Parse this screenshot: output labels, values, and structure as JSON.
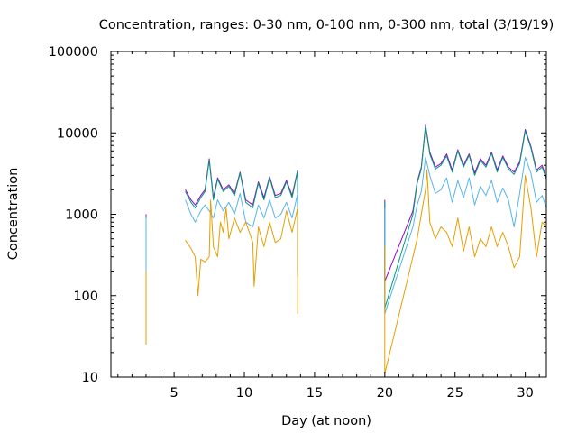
{
  "chart_data": {
    "type": "line",
    "title": "Concentration, ranges: 0-30 nm, 0-100 nm, 0-300 nm, total (3/19/19)",
    "xlabel": "Day (at noon)",
    "ylabel": "Concentration",
    "xlim": [
      0.5,
      31.5
    ],
    "ylim": [
      10,
      100000
    ],
    "yscale": "log",
    "grid": false,
    "legend": "none",
    "x_ticks": [
      5,
      10,
      15,
      20,
      25,
      30
    ],
    "x_tick_labels": [
      "5",
      "10",
      "15",
      "20",
      "25",
      "30"
    ],
    "y_ticks": [
      10,
      100,
      1000,
      10000,
      100000
    ],
    "y_tick_labels": [
      "10",
      "100",
      "1000",
      "10000",
      "100000"
    ],
    "series": [
      {
        "color": "#9400d3",
        "x": [
          3.0,
          3.0,
          5.8,
          6.2,
          6.5,
          6.9,
          7.2,
          7.5,
          7.8,
          8.1,
          8.5,
          8.9,
          9.3,
          9.7,
          10.1,
          10.6,
          11.0,
          11.4,
          11.8,
          12.2,
          12.6,
          13.0,
          13.4,
          13.8,
          13.8,
          20.0,
          20.0,
          22.0,
          22.3,
          22.6,
          22.9,
          23.2,
          23.6,
          24.0,
          24.4,
          24.8,
          25.2,
          25.6,
          26.0,
          26.4,
          26.8,
          27.2,
          27.6,
          28.0,
          28.4,
          28.8,
          29.2,
          29.6,
          30.0,
          30.4,
          30.8,
          31.2,
          31.5
        ],
        "y": [
          1000,
          200,
          2000,
          1500,
          1300,
          1700,
          2000,
          4800,
          1600,
          2800,
          2000,
          2300,
          1800,
          3300,
          1500,
          1300,
          2500,
          1600,
          2900,
          1700,
          1800,
          2600,
          1700,
          3500,
          200,
          1500,
          150,
          1100,
          2500,
          3800,
          12500,
          5800,
          3800,
          4200,
          5500,
          3500,
          6200,
          4000,
          5500,
          3200,
          4800,
          4000,
          5800,
          3500,
          5200,
          3800,
          3300,
          4400,
          11000,
          6800,
          3500,
          4000,
          2800
        ]
      },
      {
        "color": "#009e73",
        "x": [
          3.0,
          3.0,
          5.8,
          6.2,
          6.5,
          6.9,
          7.2,
          7.5,
          7.8,
          8.1,
          8.5,
          8.9,
          9.3,
          9.7,
          10.1,
          10.6,
          11.0,
          11.4,
          11.8,
          12.2,
          12.6,
          13.0,
          13.4,
          13.8,
          13.8,
          20.0,
          20.0,
          22.0,
          22.3,
          22.6,
          22.9,
          23.2,
          23.6,
          24.0,
          24.4,
          24.8,
          25.2,
          25.6,
          26.0,
          26.4,
          26.8,
          27.2,
          27.6,
          28.0,
          28.4,
          28.8,
          29.2,
          29.6,
          30.0,
          30.4,
          30.8,
          31.2,
          31.5
        ],
        "y": [
          950,
          180,
          1900,
          1400,
          1200,
          1600,
          1900,
          4600,
          1500,
          2700,
          1900,
          2200,
          1700,
          3200,
          1400,
          1200,
          2400,
          1500,
          2800,
          1600,
          1700,
          2500,
          1600,
          3400,
          180,
          1400,
          70,
          1000,
          2400,
          3600,
          12000,
          5500,
          3600,
          4000,
          5200,
          3300,
          6000,
          3800,
          5300,
          3000,
          4600,
          3800,
          5600,
          3300,
          5000,
          3600,
          3100,
          4200,
          10500,
          6500,
          3300,
          3800,
          2700
        ]
      },
      {
        "color": "#56b4e9",
        "x": [
          3.0,
          3.0,
          5.8,
          6.2,
          6.5,
          6.9,
          7.2,
          7.5,
          7.8,
          8.1,
          8.5,
          8.9,
          9.3,
          9.7,
          10.1,
          10.6,
          11.0,
          11.4,
          11.8,
          12.2,
          12.6,
          13.0,
          13.4,
          13.8,
          13.8,
          20.0,
          20.0,
          22.0,
          22.3,
          22.6,
          22.9,
          23.2,
          23.6,
          24.0,
          24.4,
          24.8,
          25.2,
          25.6,
          26.0,
          26.4,
          26.8,
          27.2,
          27.6,
          28.0,
          28.4,
          28.8,
          29.2,
          29.6,
          30.0,
          30.4,
          30.8,
          31.2,
          31.5
        ],
        "y": [
          900,
          170,
          1500,
          1000,
          800,
          1100,
          1300,
          1100,
          900,
          1500,
          1100,
          1400,
          1000,
          1800,
          800,
          700,
          1300,
          900,
          1500,
          900,
          1000,
          1400,
          900,
          1800,
          170,
          1200,
          60,
          700,
          1300,
          1900,
          5000,
          3000,
          1800,
          2000,
          2800,
          1400,
          2600,
          1600,
          2800,
          1300,
          2200,
          1700,
          2600,
          1400,
          2100,
          1500,
          700,
          1800,
          5000,
          3200,
          1400,
          1700,
          1200
        ]
      },
      {
        "color": "#e69f00",
        "x": [
          3.0,
          3.0,
          5.8,
          6.2,
          6.5,
          6.7,
          6.9,
          7.2,
          7.5,
          7.6,
          7.8,
          8.1,
          8.3,
          8.5,
          8.7,
          8.9,
          9.3,
          9.7,
          10.1,
          10.6,
          10.7,
          11.0,
          11.4,
          11.8,
          12.2,
          12.6,
          13.0,
          13.4,
          13.8,
          13.8,
          20.0,
          20.0,
          22.0,
          22.3,
          22.6,
          22.9,
          23.0,
          23.2,
          23.6,
          24.0,
          24.4,
          24.8,
          25.2,
          25.6,
          26.0,
          26.4,
          26.8,
          27.2,
          27.6,
          28.0,
          28.4,
          28.8,
          29.2,
          29.6,
          30.0,
          30.4,
          30.8,
          31.2,
          31.5
        ],
        "y": [
          200,
          25,
          480,
          380,
          300,
          100,
          280,
          260,
          300,
          1500,
          400,
          300,
          800,
          600,
          1200,
          500,
          900,
          600,
          800,
          450,
          130,
          700,
          400,
          800,
          450,
          500,
          1100,
          600,
          1200,
          60,
          400,
          11,
          300,
          500,
          1000,
          2000,
          3500,
          800,
          500,
          700,
          600,
          400,
          900,
          350,
          700,
          300,
          500,
          400,
          700,
          400,
          600,
          400,
          220,
          300,
          3000,
          1200,
          300,
          800,
          700
        ]
      }
    ]
  }
}
